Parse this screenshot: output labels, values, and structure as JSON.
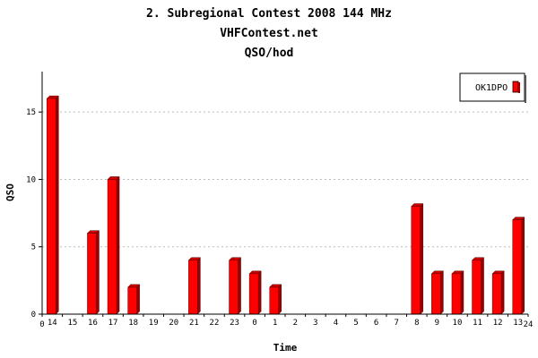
{
  "chart_data": {
    "type": "bar",
    "titles": [
      "2. Subregional Contest 2008 144 MHz",
      "VHFContest.net",
      "QSO/hod"
    ],
    "xlabel": "Time",
    "ylabel": "QSO",
    "ylim": [
      0,
      18
    ],
    "yticks": [
      0,
      5,
      10,
      15
    ],
    "x_axis_end_labels": [
      "0",
      "24"
    ],
    "categories": [
      "14",
      "15",
      "16",
      "17",
      "18",
      "19",
      "20",
      "21",
      "22",
      "23",
      "0",
      "1",
      "2",
      "3",
      "4",
      "5",
      "6",
      "7",
      "8",
      "9",
      "10",
      "11",
      "12",
      "13"
    ],
    "series": [
      {
        "name": "OK1DPO",
        "values": [
          16,
          0,
          6,
          10,
          2,
          0,
          0,
          4,
          0,
          4,
          3,
          2,
          0,
          0,
          0,
          0,
          0,
          0,
          8,
          3,
          3,
          4,
          3,
          7
        ]
      }
    ],
    "grid": true,
    "legend_position": "top-right",
    "colors": {
      "bar_front": "#ff0000",
      "bar_side": "#990000",
      "bar_top": "#cc0000",
      "grid": "#bbbbbb",
      "axis": "#000000"
    }
  }
}
